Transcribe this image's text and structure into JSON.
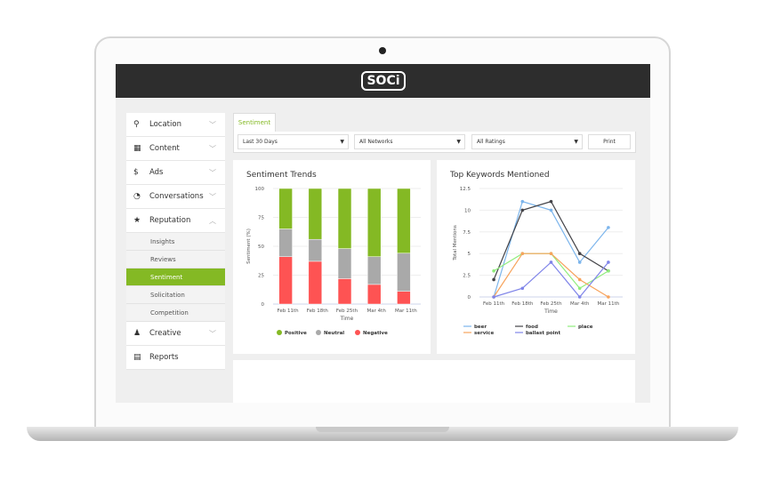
{
  "header": {
    "logo": "SOCi"
  },
  "sidebar": {
    "items": [
      {
        "label": "Location",
        "icon": "pin-icon"
      },
      {
        "label": "Content",
        "icon": "calendar-icon"
      },
      {
        "label": "Ads",
        "icon": "dollar-icon"
      },
      {
        "label": "Conversations",
        "icon": "chat-icon"
      },
      {
        "label": "Reputation",
        "icon": "star-icon",
        "expanded": true
      },
      {
        "label": "Creative",
        "icon": "creative-icon"
      },
      {
        "label": "Reports",
        "icon": "document-icon"
      }
    ],
    "subitems": [
      "Insights",
      "Reviews",
      "Sentiment",
      "Solicitation",
      "Competition"
    ],
    "active": "Sentiment"
  },
  "tabs": [
    "Sentiment"
  ],
  "filters": {
    "date": "Last 30 Days",
    "networks": "All Networks",
    "ratings": "All Ratings",
    "print": "Print"
  },
  "chart_data": [
    {
      "type": "bar",
      "stacked": true,
      "title": "Sentiment Trends",
      "xlabel": "Time",
      "ylabel": "Sentiment (%)",
      "ylim": [
        0,
        100
      ],
      "yticks": [
        "0",
        "25",
        "50",
        "75",
        "100"
      ],
      "categories": [
        "Feb 11th",
        "Feb 18th",
        "Feb 25th",
        "Mar 4th",
        "Mar 11th"
      ],
      "series": [
        {
          "name": "Negative",
          "color": "#fe5353",
          "values": [
            41,
            37,
            22,
            17,
            11
          ]
        },
        {
          "name": "Neutral",
          "color": "#a9a9a9",
          "values": [
            24,
            19,
            26,
            24,
            33
          ]
        },
        {
          "name": "Positive",
          "color": "#84b924",
          "values": [
            35,
            44,
            52,
            59,
            56
          ]
        }
      ],
      "legend": "bottom",
      "legend_order": [
        "Positive",
        "Neutral",
        "Negative"
      ]
    },
    {
      "type": "line",
      "title": "Top Keywords Mentioned",
      "xlabel": "Time",
      "ylabel": "Total Mentions",
      "ylim": [
        0,
        12.5
      ],
      "yticks": [
        "0",
        "2.5",
        "5",
        "7.5",
        "10",
        "12.5"
      ],
      "categories": [
        "Feb 11th",
        "Feb 18th",
        "Feb 25th",
        "Mar 4th",
        "Mar 11th"
      ],
      "series": [
        {
          "name": "beer",
          "color": "#7cb5ec",
          "values": [
            0,
            11,
            10,
            4,
            8
          ]
        },
        {
          "name": "food",
          "color": "#434348",
          "values": [
            2,
            10,
            11,
            5,
            3
          ]
        },
        {
          "name": "place",
          "color": "#90ed7d",
          "values": [
            3,
            5,
            5,
            1,
            3
          ]
        },
        {
          "name": "service",
          "color": "#f7a35c",
          "values": [
            0,
            5,
            5,
            2,
            0
          ]
        },
        {
          "name": "ballast point",
          "color": "#8085e9",
          "values": [
            0,
            1,
            4,
            0,
            4
          ]
        }
      ],
      "legend": "bottom"
    }
  ]
}
